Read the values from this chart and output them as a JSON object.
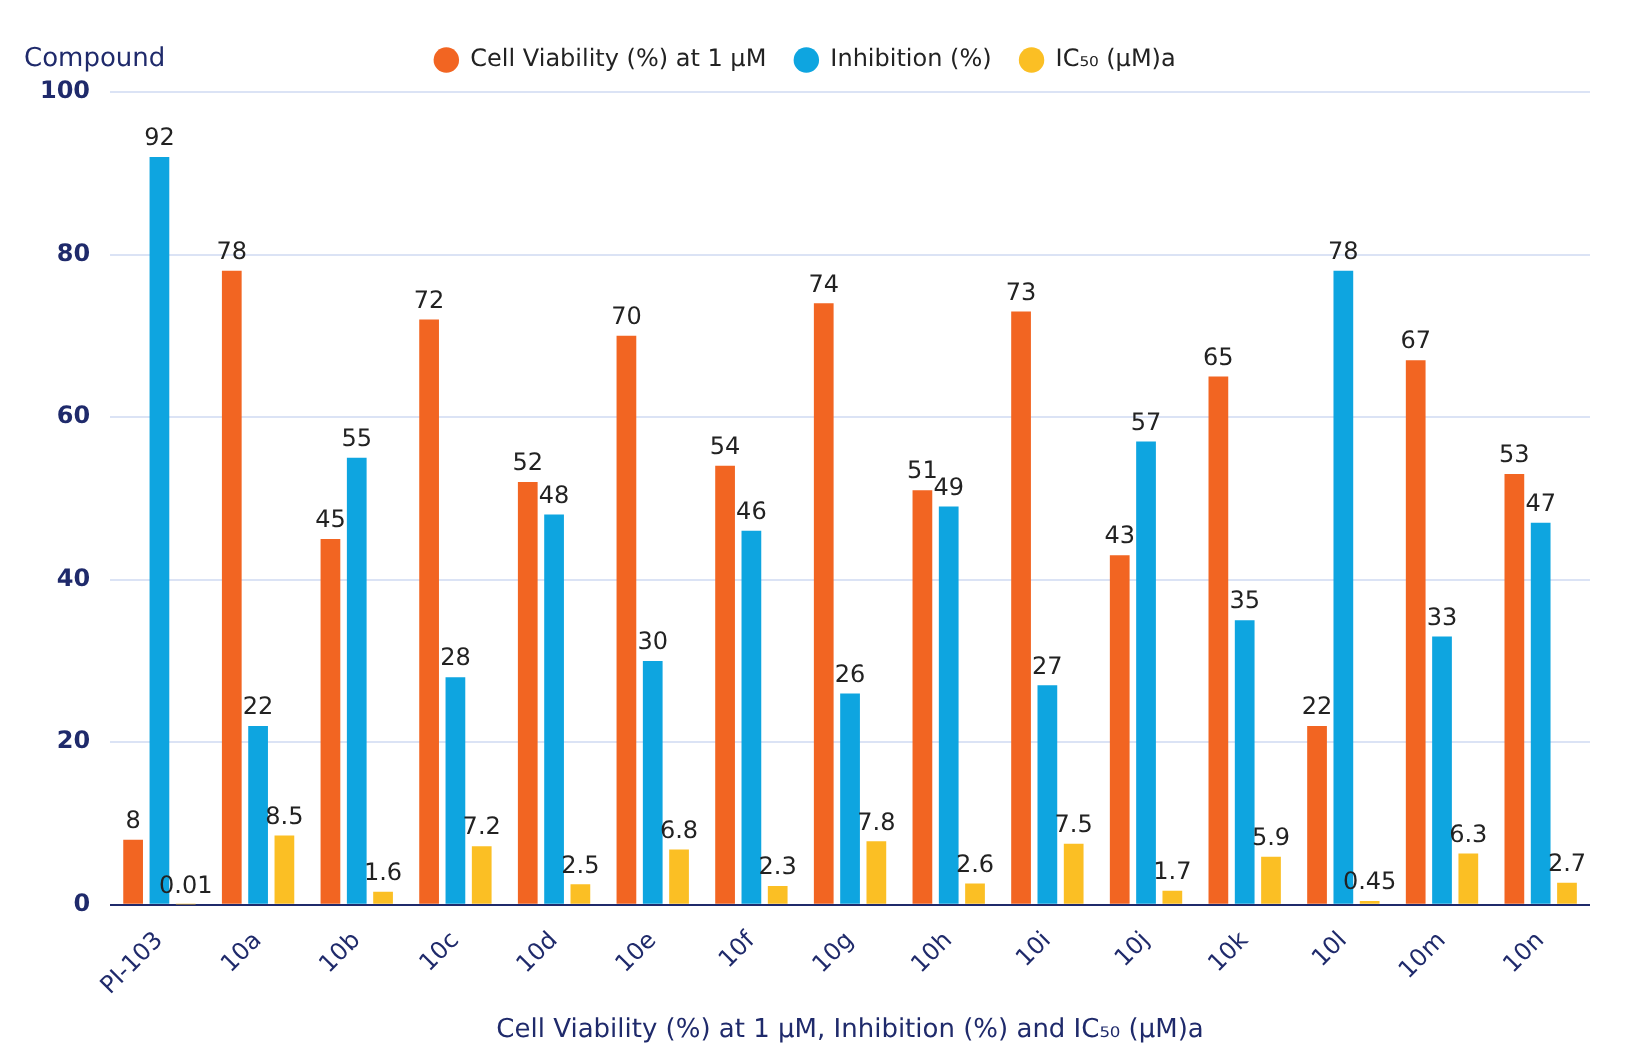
{
  "chart_data": {
    "type": "bar",
    "categories": [
      "PI-103",
      "10a",
      "10b",
      "10c",
      "10d",
      "10e",
      "10f",
      "10g",
      "10h",
      "10i",
      "10j",
      "10k",
      "10l",
      "10m",
      "10n"
    ],
    "series": [
      {
        "name": "Cell Viability (%) at 1 μM",
        "color": "#f26522",
        "values": [
          8,
          78,
          45,
          72,
          52,
          70,
          54,
          74,
          51,
          73,
          43,
          65,
          22,
          67,
          53
        ]
      },
      {
        "name": "Inhibition (%)",
        "color": "#0ea5e0",
        "values": [
          92,
          22,
          55,
          28,
          48,
          30,
          46,
          26,
          49,
          27,
          57,
          35,
          78,
          33,
          47
        ]
      },
      {
        "name": "IC₅₀ (μM)a",
        "color": "#fbbf24",
        "values": [
          0.01,
          8.5,
          1.6,
          7.2,
          2.5,
          6.8,
          2.3,
          7.8,
          2.6,
          7.5,
          1.7,
          5.9,
          0.45,
          6.3,
          2.7
        ]
      }
    ],
    "xlabel": "Cell Viability (%) at 1 μM, Inhibition (%) and IC₅₀ (μM)a",
    "ylabel": "Compound",
    "ylim": [
      0,
      100
    ],
    "yticks": [
      0,
      20,
      40,
      60,
      80,
      100
    ],
    "grid": "y",
    "legend": "top",
    "data_labels": true
  }
}
